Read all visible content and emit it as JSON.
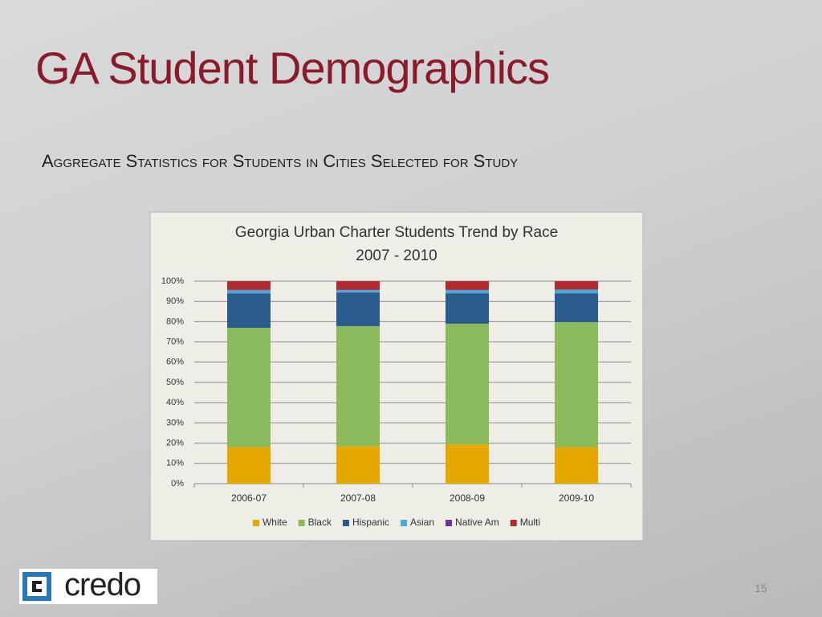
{
  "slide": {
    "title": "GA Student Demographics",
    "subtitle": "Aggregate Statistics for Students in Cities Selected for Study",
    "logo": "credo",
    "page_number": "15"
  },
  "chart_data": {
    "type": "stacked-bar",
    "title": "Georgia Urban Charter Students Trend by Race",
    "subtitle": "2007 - 2010",
    "categories": [
      "2006-07",
      "2007-08",
      "2008-09",
      "2009-10"
    ],
    "series": [
      {
        "name": "White",
        "color": "#e5a800",
        "values": [
          18,
          18.5,
          19.4,
          18
        ]
      },
      {
        "name": "Black",
        "color": "#8aba5b",
        "values": [
          59,
          59.3,
          59.6,
          61.8
        ]
      },
      {
        "name": "Hispanic",
        "color": "#2a5a8e",
        "values": [
          17,
          16.6,
          15,
          14.2
        ]
      },
      {
        "name": "Asian",
        "color": "#4aaad6",
        "values": [
          1.5,
          1.2,
          1.6,
          1.8
        ]
      },
      {
        "name": "Native Am",
        "color": "#7030a0",
        "values": [
          0.2,
          0.2,
          0.2,
          0.2
        ]
      },
      {
        "name": "Multi",
        "color": "#b02a30",
        "values": [
          4.3,
          4.2,
          4.2,
          4
        ]
      }
    ],
    "ylim": [
      0,
      100
    ],
    "yticks": [
      {
        "value": 0,
        "label": "0%"
      },
      {
        "value": 10,
        "label": "10%"
      },
      {
        "value": 20,
        "label": "20%"
      },
      {
        "value": 30,
        "label": "30%"
      },
      {
        "value": 40,
        "label": "40%"
      },
      {
        "value": 50,
        "label": "50%"
      },
      {
        "value": 60,
        "label": "60%"
      },
      {
        "value": 70,
        "label": "70%"
      },
      {
        "value": 80,
        "label": "80%"
      },
      {
        "value": 90,
        "label": "90%"
      },
      {
        "value": 100,
        "label": "100%"
      }
    ],
    "grid": true,
    "legend": "bottom"
  }
}
